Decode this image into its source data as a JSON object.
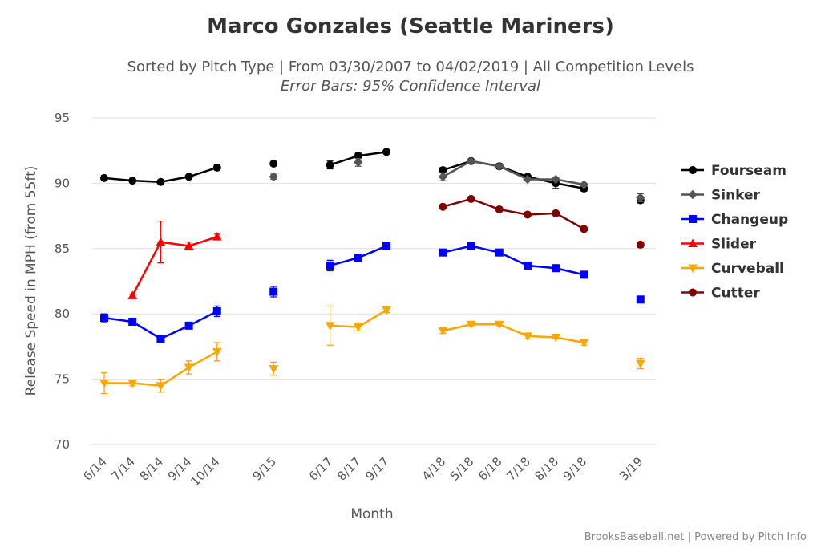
{
  "colors": {
    "Fourseam": "#000000",
    "Sinker": "#555555",
    "Changeup": "#0000ff",
    "Slider": "#ff0000",
    "Curveball": "#ffa500",
    "Cutter": "#800000"
  },
  "chart_data": {
    "type": "line",
    "title": "Marco Gonzales (Seattle Mariners)",
    "subtitle": "Sorted by Pitch Type | From 03/30/2007 to 04/02/2019 | All Competition Levels",
    "subtitle2": "Error Bars: 95% Confidence Interval",
    "xlabel": "Month",
    "ylabel": "Release Speed in MPH (from 55ft)",
    "ylim": [
      70,
      95
    ],
    "yticks": [
      70,
      75,
      80,
      85,
      90,
      95
    ],
    "categories": [
      "6/14",
      "7/14",
      "8/14",
      "9/14",
      "10/14",
      "",
      "9/15",
      "",
      "6/17",
      "8/17",
      "9/17",
      "",
      "4/18",
      "5/18",
      "6/18",
      "7/18",
      "8/18",
      "9/18",
      "",
      "3/19"
    ],
    "series": [
      {
        "name": "Fourseam",
        "marker": "circle",
        "values": [
          90.4,
          90.2,
          90.1,
          90.5,
          91.2,
          null,
          91.5,
          null,
          91.4,
          92.1,
          92.4,
          null,
          91.0,
          91.7,
          91.3,
          90.5,
          90.0,
          89.6,
          null,
          88.7
        ],
        "err": [
          0.2,
          0.1,
          0.1,
          0.1,
          0.2,
          null,
          0.1,
          null,
          0.3,
          0.2,
          0.1,
          null,
          0.2,
          0.1,
          0.2,
          0.1,
          0.4,
          0.2,
          null,
          0.2
        ]
      },
      {
        "name": "Sinker",
        "marker": "diamond",
        "values": [
          null,
          null,
          null,
          null,
          null,
          null,
          90.5,
          null,
          null,
          91.6,
          null,
          null,
          90.5,
          91.7,
          91.3,
          90.3,
          90.3,
          89.9,
          null,
          88.9
        ],
        "err": [
          null,
          null,
          null,
          null,
          null,
          null,
          0.2,
          null,
          null,
          0.3,
          null,
          null,
          0.3,
          0.1,
          0.1,
          0.1,
          0.1,
          0.1,
          null,
          0.3
        ]
      },
      {
        "name": "Changeup",
        "marker": "square",
        "values": [
          79.7,
          79.4,
          78.1,
          79.1,
          80.2,
          null,
          81.7,
          null,
          83.7,
          84.3,
          85.2,
          null,
          84.7,
          85.2,
          84.7,
          83.7,
          83.5,
          83.0,
          null,
          81.1
        ],
        "err": [
          0.3,
          0.1,
          0.2,
          0.2,
          0.4,
          null,
          0.4,
          null,
          0.4,
          0.1,
          0.1,
          null,
          0.1,
          0.1,
          0.1,
          0.1,
          0.1,
          0.1,
          null,
          0.2
        ]
      },
      {
        "name": "Slider",
        "marker": "triangle",
        "values": [
          null,
          81.4,
          85.5,
          85.2,
          85.9,
          null,
          null,
          null,
          null,
          null,
          null,
          null,
          null,
          null,
          null,
          null,
          null,
          null,
          null,
          null
        ],
        "err": [
          null,
          0.1,
          1.6,
          0.3,
          0.2,
          null,
          null,
          null,
          null,
          null,
          null,
          null,
          null,
          null,
          null,
          null,
          null,
          null,
          null,
          null
        ]
      },
      {
        "name": "Curveball",
        "marker": "triangle-down",
        "values": [
          74.7,
          74.7,
          74.5,
          75.9,
          77.1,
          null,
          75.8,
          null,
          79.1,
          79.0,
          80.3,
          null,
          78.7,
          79.2,
          79.2,
          78.3,
          78.2,
          77.8,
          null,
          76.2
        ],
        "err": [
          0.8,
          0.2,
          0.5,
          0.5,
          0.7,
          null,
          0.5,
          null,
          1.5,
          0.3,
          0.2,
          null,
          0.2,
          0.1,
          0.1,
          0.2,
          0.1,
          0.2,
          null,
          0.4
        ]
      },
      {
        "name": "Cutter",
        "marker": "circle",
        "values": [
          null,
          null,
          null,
          null,
          null,
          null,
          null,
          null,
          null,
          null,
          null,
          null,
          88.2,
          88.8,
          88.0,
          87.6,
          87.7,
          86.5,
          null,
          85.3
        ],
        "err": [
          null,
          null,
          null,
          null,
          null,
          null,
          null,
          null,
          null,
          null,
          null,
          null,
          0.1,
          0.1,
          0.1,
          0.1,
          0.1,
          0.1,
          null,
          0.2
        ]
      }
    ],
    "legend_position": "right",
    "credits": "BrooksBaseball.net | Powered by Pitch Info"
  }
}
